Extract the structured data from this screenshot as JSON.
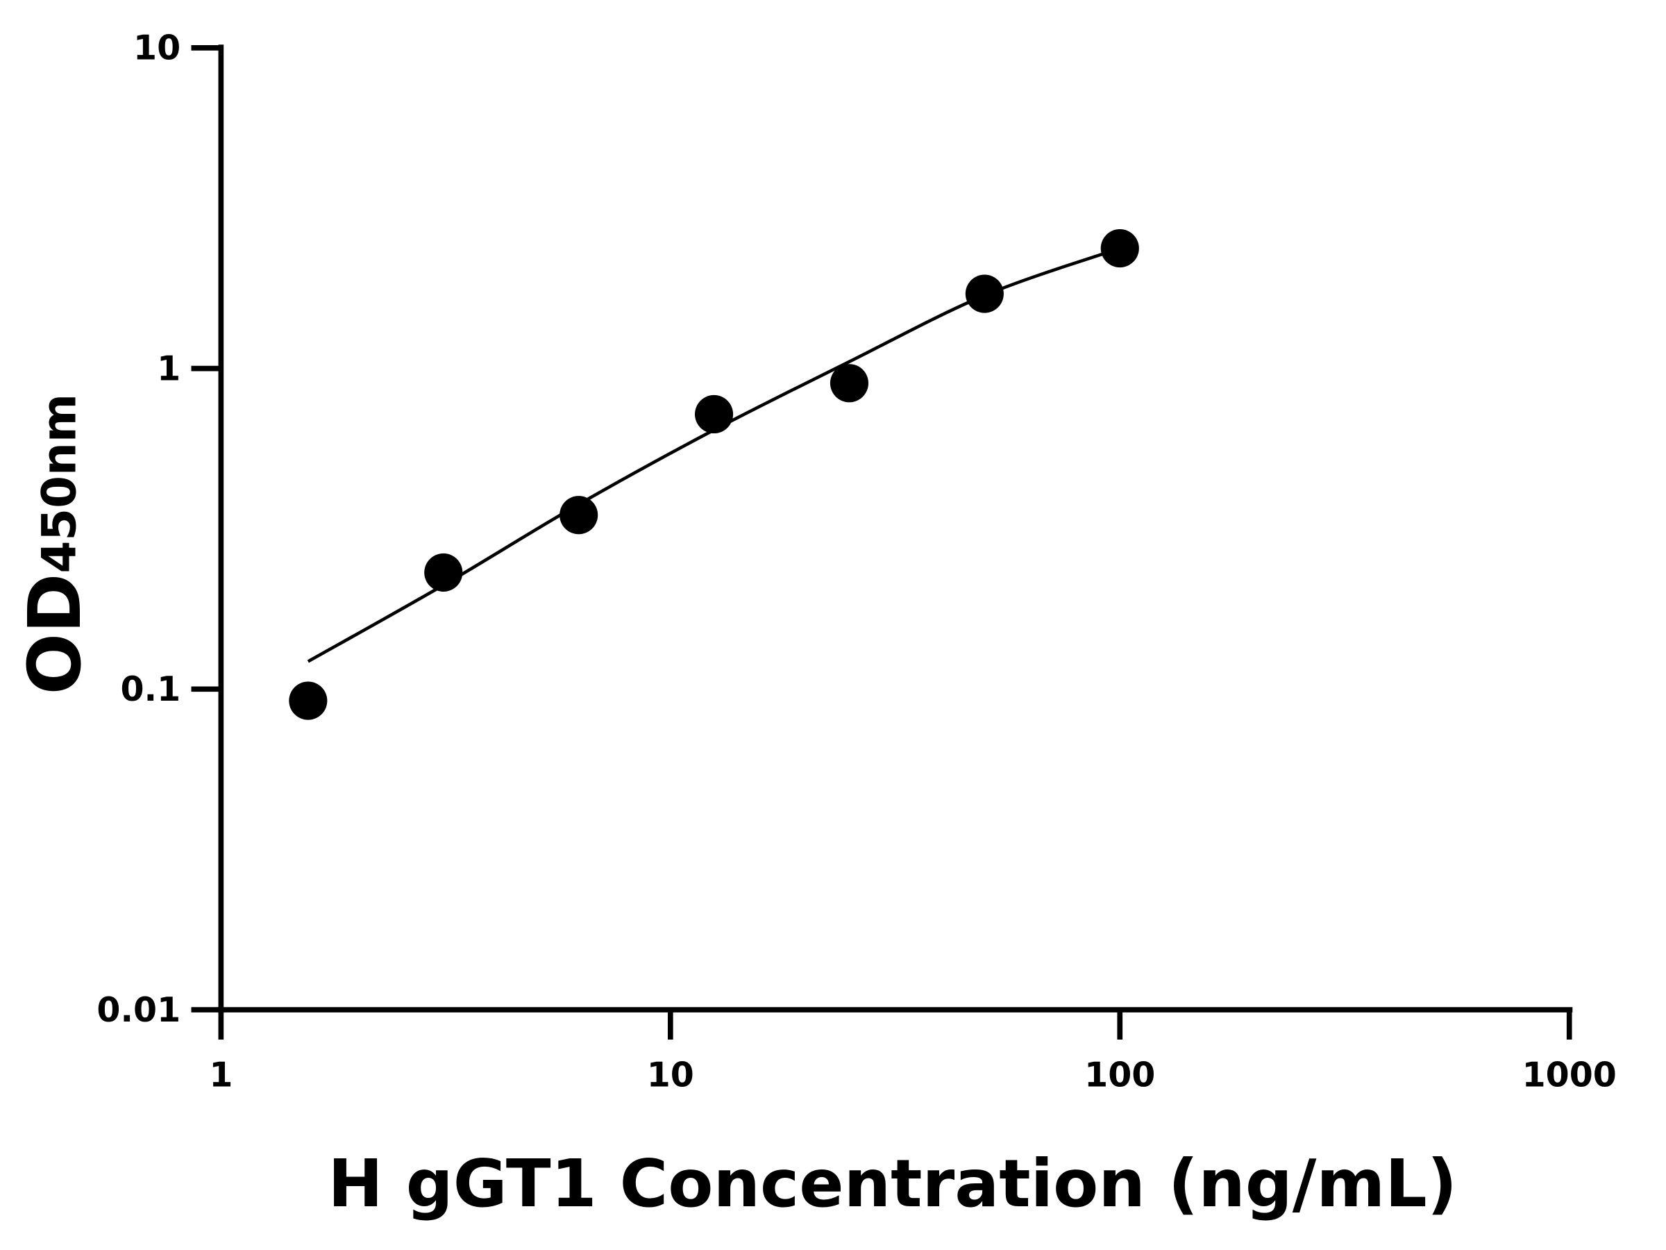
{
  "chart_data": {
    "type": "scatter",
    "xlabel": "H gGT1 Concentration (ng/mL)",
    "ylabel": {
      "text": "OD",
      "subscript": "450nm"
    },
    "x": [
      1.5625,
      3.125,
      6.25,
      12.5,
      25,
      50,
      100
    ],
    "series": [
      {
        "style": "marker",
        "color": "#000000",
        "values": [
          0.092,
          0.231,
          0.349,
          0.72,
          0.9,
          1.71,
          2.37
        ]
      },
      {
        "style": "line",
        "color": "#000000",
        "values": [
          0.122,
          0.211,
          0.377,
          0.643,
          1.05,
          1.69,
          2.37
        ]
      }
    ],
    "xscale": "log",
    "yscale": "log",
    "xlim": [
      1,
      1000
    ],
    "ylim": [
      0.01,
      10
    ],
    "xticks": [
      1,
      10,
      100,
      1000
    ],
    "yticks": [
      0.01,
      0.1,
      1,
      10
    ],
    "grid": false
  }
}
